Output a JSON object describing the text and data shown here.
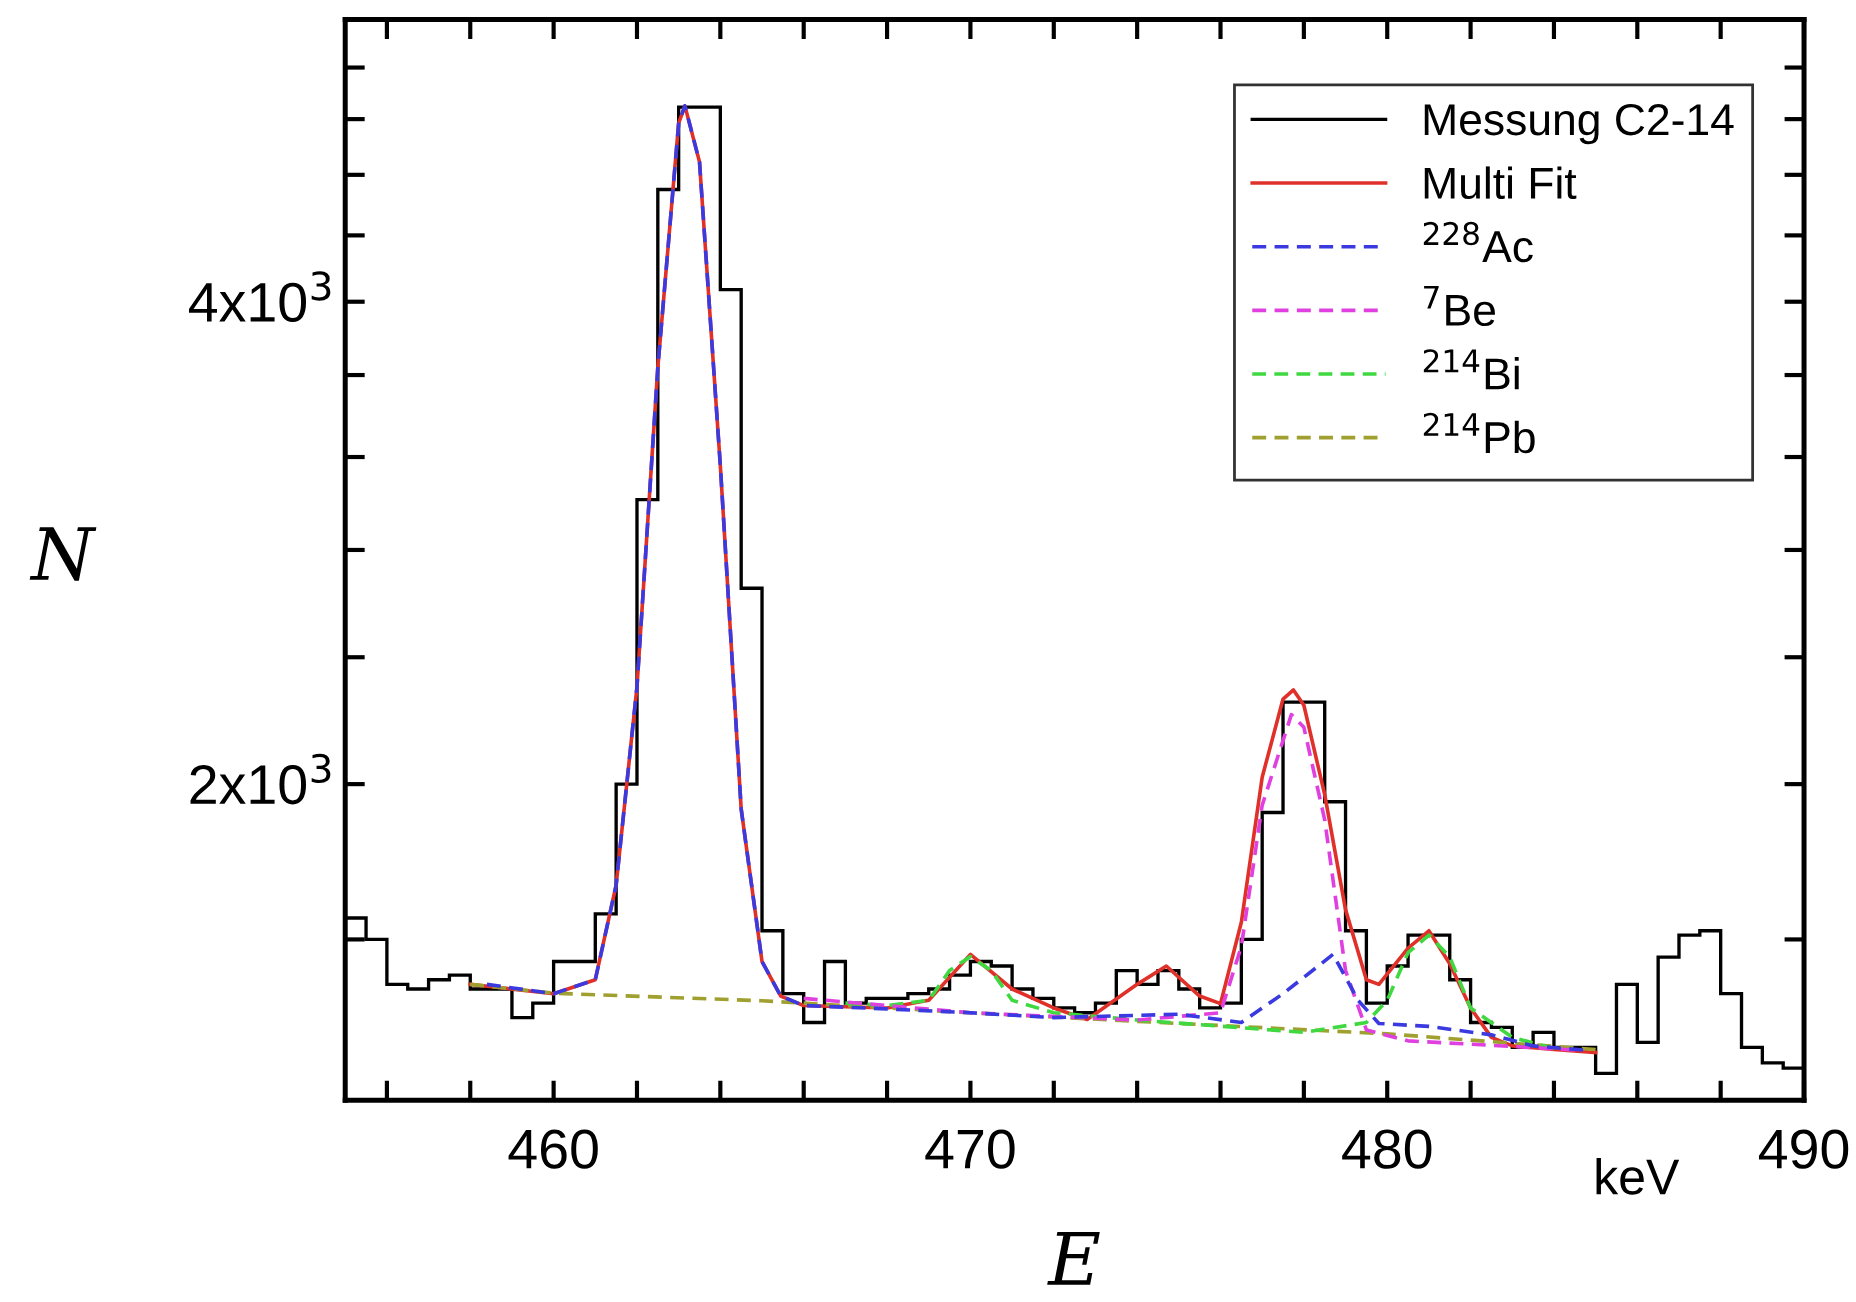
{
  "chart_data": {
    "type": "line",
    "xlabel": "E",
    "ylabel": "N",
    "annotations": [
      "keV"
    ],
    "log": "y",
    "legend": "top right",
    "grid": false,
    "xlim": [
      455,
      490
    ],
    "xticks": [
      {
        "value": 456,
        "label": null
      },
      {
        "value": 458,
        "label": null
      },
      460,
      {
        "value": 462,
        "label": null
      },
      {
        "value": 464,
        "label": null
      },
      {
        "value": 466,
        "label": null
      },
      {
        "value": 468,
        "label": null
      },
      470,
      {
        "value": 472,
        "label": null
      },
      {
        "value": 474,
        "label": null
      },
      {
        "value": 476,
        "label": null
      },
      {
        "value": 478,
        "label": null
      },
      480,
      {
        "value": 482,
        "label": null
      },
      {
        "value": 484,
        "label": null
      },
      {
        "value": 486,
        "label": null
      },
      {
        "value": 488,
        "label": null
      },
      490
    ],
    "ylim": [
      1270,
      6000
    ],
    "yticks": [
      {
        "value": 1600,
        "label": null
      },
      {
        "value": 2000,
        "label": "2x10$^{3}$"
      },
      {
        "value": 2400,
        "label": null
      },
      {
        "value": 2800,
        "label": null
      },
      {
        "value": 3200,
        "label": null
      },
      {
        "value": 3600,
        "label": null
      },
      {
        "value": 4000,
        "label": "4x10$^{3}$"
      },
      {
        "value": 4400,
        "label": null
      },
      {
        "value": 4800,
        "label": null
      },
      {
        "value": 5200,
        "label": null
      },
      {
        "value": 5600,
        "label": null
      }
    ],
    "series": [
      {
        "name": "Messung C2-14",
        "type": "histogram",
        "color": "#000000",
        "bins": [
          455,
          455.5,
          456,
          456.5,
          457,
          457.5,
          458,
          458.5,
          459,
          459.5,
          460,
          460.5,
          461,
          461.5,
          462,
          462.5,
          463,
          463.5,
          464,
          464.5,
          465,
          465.5,
          466,
          466.5,
          467,
          467.5,
          468,
          468.5,
          469,
          469.5,
          470,
          470.5,
          471,
          471.5,
          472,
          472.5,
          473,
          473.5,
          474,
          474.5,
          475,
          475.5,
          476,
          476.5,
          477,
          477.5,
          478,
          478.5,
          479,
          479.5,
          480,
          480.5,
          481,
          481.5,
          482,
          482.5,
          483,
          483.5,
          484,
          484.5,
          485,
          485.5,
          486,
          486.5,
          487,
          487.5,
          488,
          488.5,
          489,
          489.5,
          490
        ],
        "values": [
          1650,
          1600,
          1500,
          1490,
          1510,
          1520,
          1490,
          1490,
          1430,
          1460,
          1550,
          1550,
          1660,
          2000,
          3010,
          4700,
          5290,
          5290,
          4070,
          2650,
          1620,
          1480,
          1420,
          1550,
          1460,
          1470,
          1470,
          1480,
          1490,
          1520,
          1550,
          1540,
          1490,
          1470,
          1450,
          1440,
          1460,
          1530,
          1500,
          1530,
          1490,
          1450,
          1460,
          1600,
          1920,
          2250,
          2250,
          1950,
          1620,
          1460,
          1540,
          1610,
          1610,
          1510,
          1420,
          1410,
          1370,
          1400,
          1370,
          1370,
          1320,
          1500,
          1380,
          1560,
          1610,
          1620,
          1480,
          1370,
          1340,
          1330
        ]
      },
      {
        "name": "Multi Fit",
        "type": "line",
        "color": "#e0302a",
        "line_style": "solid",
        "x": [
          458,
          460,
          461,
          461.5,
          462,
          462.5,
          463,
          463.15,
          463.5,
          464,
          464.5,
          465,
          465.45,
          466,
          468,
          469,
          470,
          471,
          472,
          472.8,
          474,
          474.7,
          475.5,
          476,
          476.5,
          477,
          477.5,
          477.75,
          478,
          478.5,
          479,
          479.5,
          479.8,
          480.5,
          481,
          481.5,
          482,
          482.5,
          483,
          484,
          485
        ],
        "values": [
          1500,
          1480,
          1510,
          1730,
          2300,
          3640,
          5170,
          5300,
          4890,
          3160,
          1930,
          1550,
          1475,
          1455,
          1450,
          1466,
          1566,
          1490,
          1450,
          1426,
          1500,
          1540,
          1475,
          1459,
          1640,
          2020,
          2260,
          2290,
          2240,
          1970,
          1670,
          1510,
          1500,
          1580,
          1620,
          1545,
          1450,
          1390,
          1373,
          1366,
          1360
        ]
      },
      {
        "name": "$^{228}$Ac",
        "type": "line",
        "color": "#3a3ae0",
        "line_style": "dashed",
        "x": [
          458.4,
          460,
          461,
          461.5,
          462,
          462.5,
          463,
          463.15,
          463.5,
          464,
          464.5,
          465,
          465.45,
          466,
          468,
          470,
          472,
          475,
          476.5,
          477.5,
          478.7,
          479.3,
          479.8,
          481,
          482.5,
          483.5,
          484.7
        ],
        "values": [
          1500,
          1480,
          1510,
          1730,
          2300,
          3640,
          5170,
          5300,
          4890,
          3160,
          1930,
          1550,
          1475,
          1455,
          1448,
          1440,
          1430,
          1437,
          1420,
          1480,
          1566,
          1466,
          1418,
          1412,
          1395,
          1373,
          1365
        ]
      },
      {
        "name": "$^{7}$Be",
        "type": "line",
        "color": "#e040e0",
        "line_style": "dashed",
        "x": [
          466,
          470,
          474,
          476,
          476.5,
          477,
          477.7,
          478,
          478.5,
          479,
          479.5,
          480.5,
          483,
          484.5
        ],
        "values": [
          1470,
          1440,
          1425,
          1440,
          1584,
          1940,
          2210,
          2170,
          1900,
          1530,
          1405,
          1383,
          1372,
          1365
        ]
      },
      {
        "name": "$^{214}$Bi",
        "type": "line",
        "color": "#40d840",
        "line_style": "dashed",
        "x": [
          467,
          468,
          469,
          469.5,
          470,
          470.5,
          471,
          472,
          474,
          478,
          479.5,
          480,
          480.5,
          481,
          481.5,
          482,
          483,
          484
        ],
        "values": [
          1460,
          1455,
          1466,
          1530,
          1561,
          1530,
          1466,
          1440,
          1425,
          1400,
          1420,
          1466,
          1570,
          1610,
          1560,
          1450,
          1390,
          1368
        ]
      },
      {
        "name": "$^{214}$Pb",
        "type": "line",
        "color": "#a0a030",
        "line_style": "dashed",
        "x": [
          458,
          460,
          465,
          470,
          475,
          480,
          485
        ],
        "values": [
          1500,
          1481,
          1465,
          1440,
          1418,
          1397,
          1366
        ]
      }
    ]
  }
}
